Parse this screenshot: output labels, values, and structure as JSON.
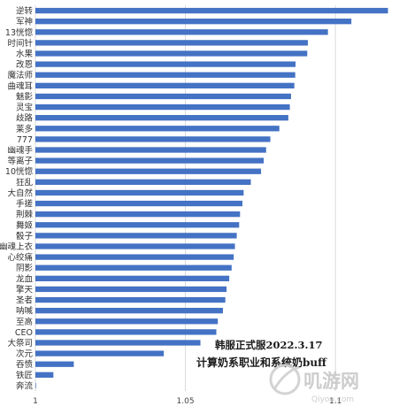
{
  "chart_data": {
    "type": "bar",
    "orientation": "horizontal",
    "categories": [
      "逆转",
      "军神",
      "13恍惚",
      "时间针",
      "水果",
      "改恩",
      "魔法师",
      "曲魂耳",
      "魅影",
      "灵宝",
      "歧路",
      "莱多",
      "777",
      "幽魂手",
      "等离子",
      "10恍惚",
      "狂乱",
      "大自然",
      "手搓",
      "荆棘",
      "舞姬",
      "骰子",
      "幽魂上衣",
      "心绞痛",
      "阴影",
      "龙血",
      "擎天",
      "圣者",
      "呐喊",
      "至高",
      "CEO",
      "大祭司",
      "次元",
      "吞愤",
      "铁匠",
      "奔流"
    ],
    "values": [
      1.1175,
      1.1053,
      1.0975,
      1.0908,
      1.0906,
      1.0867,
      1.0866,
      1.0863,
      1.0852,
      1.0848,
      1.0843,
      1.0813,
      1.0783,
      1.0769,
      1.0761,
      1.0752,
      1.0718,
      1.0694,
      1.069,
      1.0682,
      1.0679,
      1.0671,
      1.0665,
      1.0661,
      1.0654,
      1.0646,
      1.0637,
      1.0633,
      1.0625,
      1.0608,
      1.0603,
      1.055,
      1.0428,
      1.0128,
      1.006,
      1.0002
    ],
    "xlim": [
      1,
      1.12
    ],
    "xticks": [
      "1",
      "1.05",
      "1.1"
    ],
    "title": "",
    "xlabel": "",
    "ylabel": "",
    "grid": true,
    "legend": "none",
    "bar_color": "#4472c4"
  },
  "annotation": {
    "line1": "韩服正式服2022.3.17",
    "line2": "计算奶系职业和系统奶buff"
  },
  "watermark": {
    "text": "叽游网",
    "url": "Qiyou.com"
  }
}
